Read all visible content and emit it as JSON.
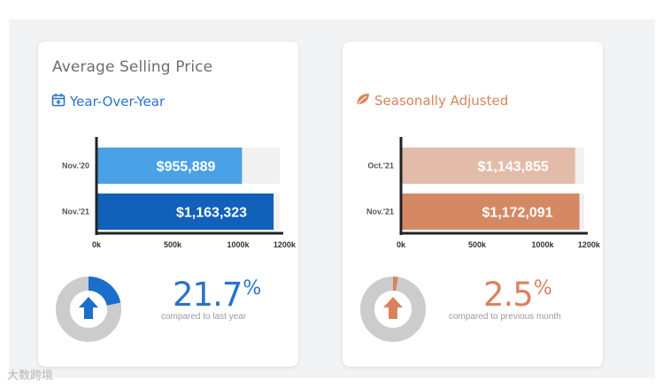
{
  "cards": [
    {
      "title": "Average Selling Price",
      "subtitle": "Year-Over-Year",
      "subtitle_icon": "calendar-plus-icon",
      "accent": "#2a73c8",
      "chart_data": {
        "type": "bar",
        "orientation": "horizontal",
        "categories": [
          "Nov.'20",
          "Nov.'21"
        ],
        "values": [
          955889,
          1163323
        ],
        "value_labels": [
          "$955,889",
          "$1,163,323"
        ],
        "x_ticks": [
          "0k",
          "500k",
          "1000k",
          "1200k"
        ],
        "x_tick_values": [
          0,
          500000,
          1000000,
          1200000
        ],
        "xlim": [
          0,
          1250000
        ],
        "bar_colors": [
          "#4aa1e6",
          "#1160ba"
        ]
      },
      "stat": {
        "value": "21.7",
        "unit": "%",
        "caption": "compared to last year",
        "direction": "up",
        "fraction": 0.217
      },
      "donut_colors": {
        "fill": "#1a6fcb",
        "track": "#cccccc",
        "arrow": "#1a6fcb"
      }
    },
    {
      "title": "",
      "subtitle": "Seasonally Adjusted",
      "subtitle_icon": "leaf-icon",
      "accent": "#d9835e",
      "chart_data": {
        "type": "bar",
        "orientation": "horizontal",
        "categories": [
          "Oct.'21",
          "Nov.'21"
        ],
        "values": [
          1143855,
          1172091
        ],
        "value_labels": [
          "$1,143,855",
          "$1,172,091"
        ],
        "x_ticks": [
          "0k",
          "500k",
          "1000k",
          "1200k"
        ],
        "x_tick_values": [
          0,
          500000,
          1000000,
          1200000
        ],
        "xlim": [
          0,
          1250000
        ],
        "bar_colors": [
          "#e2bca8",
          "#d48964"
        ]
      },
      "stat": {
        "value": "2.5",
        "unit": "%",
        "caption": "compared to previous month",
        "direction": "up",
        "fraction": 0.025
      },
      "donut_colors": {
        "fill": "#d9835e",
        "track": "#cccccc",
        "arrow": "#d9835e"
      }
    }
  ],
  "watermark": "大数跨境"
}
